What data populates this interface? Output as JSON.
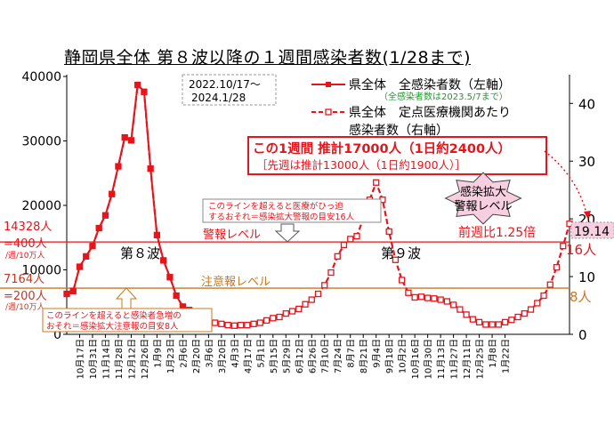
{
  "title": "静岡県全体 第８波以降の１週間感染者数(1/28まで)",
  "period": [
    "2022.10/17〜",
    "2024.1/28"
  ],
  "legend": {
    "series1": "県全体　全感染者数（左軸）",
    "series1_note": "（全感染者数は2023.5/7まで）",
    "series2_line1": "県全体　定点医療機関あたり",
    "series2_line2": "感染者数（右軸）"
  },
  "estimate_box": {
    "line1": "この1週間 推計17000人（1日約2400人）",
    "line2": "［先週は推計13000人（1日約1900人）］"
  },
  "star_label": [
    "感染拡大",
    "警報レベル"
  ],
  "ratio_label": "前週比1.25倍",
  "last_value_label": "19.14",
  "wave8_label": "第８波",
  "wave9_label": "第９波",
  "alarm": {
    "left_labels": [
      "14328人",
      "=400人",
      "/週/10万人"
    ],
    "line_label": "警報レベル",
    "right_label": "16人",
    "note_line1": "このラインを超えると医療がひっ迫",
    "note_line2": "するおそれ＝感染拡大警報の目安16人",
    "color": "#e8141b"
  },
  "caution": {
    "left_labels": [
      "7164人",
      "=200人",
      "/週/10万人"
    ],
    "line_label": "注意報レベル",
    "right_label": "8人",
    "note_line1": "このラインを超えると感染者急増の",
    "note_line2": "おそれ＝感染拡大注意報の目安8人",
    "color": "#c8781e"
  },
  "chart_data": {
    "type": "line",
    "title": "静岡県全体 第８波以降の１週間感染者数(1/28まで)",
    "x_tick_labels": [
      "10月17日",
      "10月31日",
      "11月14日",
      "11月28日",
      "12月12日",
      "12月26日",
      "1月9日",
      "1月23日",
      "2月6日",
      "2月20日",
      "3月6日",
      "3月20日",
      "4月3日",
      "4月17日",
      "5月1日",
      "5月15日",
      "5月29日",
      "6月12日",
      "6月26日",
      "7月10日",
      "7月24日",
      "8月7日",
      "8月21日",
      "9月4日",
      "9月18日",
      "10月2日",
      "10月16日",
      "10月30日",
      "11月13日",
      "11月27日",
      "12月11日",
      "12月25日",
      "1月8日",
      "1月22日"
    ],
    "y_left_ticks": [
      "0",
      "10000",
      "20000",
      "30000",
      "40000"
    ],
    "y_left_range": [
      0,
      40000
    ],
    "y_right_ticks": [
      "0",
      "10",
      "20",
      "30",
      "40"
    ],
    "y_right_range": [
      0,
      44.67
    ],
    "series": [
      {
        "name": "県全体　全感染者数（左軸）",
        "axis": "left",
        "color": "#e8141b",
        "marker": "filled-square",
        "values": [
          6300,
          6700,
          10500,
          12100,
          13700,
          16500,
          18500,
          21800,
          26100,
          30600,
          30100,
          38700,
          37700,
          25700,
          15400,
          11500,
          8900,
          6000,
          4300,
          3800,
          3200,
          2700
        ]
      },
      {
        "name": "県全体　定点医療機関あたり感染者数（右軸）",
        "axis": "right",
        "color": "#e8141b",
        "marker": "open-square",
        "values": [
          7.0,
          7.5,
          11.7,
          13.5,
          15.3,
          18.4,
          20.6,
          24.3,
          29.1,
          34.1,
          33.6,
          43.2,
          42.0,
          28.7,
          17.2,
          12.8,
          9.9,
          6.7,
          4.8,
          4.2,
          3.6,
          3.0,
          2.5,
          2.0,
          1.8,
          1.6,
          1.5,
          1.6,
          1.6,
          1.8,
          2.0,
          2.4,
          2.8,
          3.0,
          3.6,
          4.0,
          4.4,
          5.2,
          6.0,
          7.0,
          8.5,
          10.7,
          13.5,
          15.5,
          16.5,
          17.0,
          20.0,
          23.3,
          26.3,
          23.3,
          17.8,
          12.9,
          9.4,
          7.2,
          6.4,
          6.5,
          6.3,
          6.2,
          6.0,
          5.7,
          5.1,
          4.3,
          3.4,
          2.6,
          2.1,
          1.7,
          1.7,
          1.7,
          2.1,
          2.5,
          3.0,
          3.6,
          4.3,
          5.4,
          6.7,
          8.6,
          11.6,
          15.3,
          19.14
        ]
      }
    ],
    "reference_lines": [
      {
        "name": "警報レベル",
        "left_value": 14328,
        "right_value": 16
      },
      {
        "name": "注意報レベル",
        "left_value": 7164,
        "right_value": 8
      }
    ],
    "grid": false,
    "legend_position": "top-right"
  }
}
